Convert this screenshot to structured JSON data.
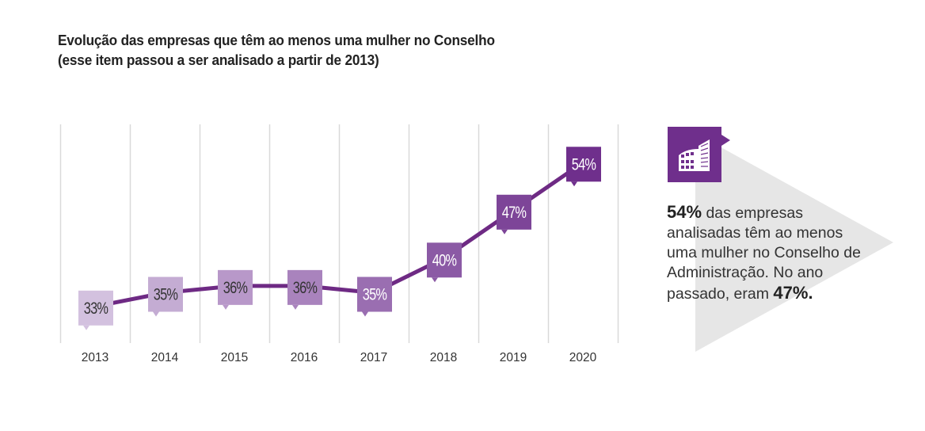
{
  "title": {
    "line1": "Evolução das empresas que têm ao menos uma mulher no Conselho",
    "line2": "(esse item passou a ser analisado a partir de 2013)"
  },
  "chart_data": {
    "type": "line",
    "title": "Evolução das empresas que têm ao menos uma mulher no Conselho (esse item passou a ser analisado a partir de 2013)",
    "xlabel": "",
    "ylabel": "",
    "categories": [
      "2013",
      "2014",
      "2015",
      "2016",
      "2017",
      "2018",
      "2019",
      "2020"
    ],
    "values": [
      33,
      35,
      36,
      36,
      35,
      40,
      47,
      54
    ],
    "labels": [
      "33%",
      "35%",
      "36%",
      "36%",
      "35%",
      "40%",
      "47%",
      "54%"
    ],
    "ylim": [
      28,
      56
    ],
    "grid": "vertical",
    "colors": {
      "line": "#6e2a84",
      "boxes": [
        "#d3c1df",
        "#c4acd3",
        "#b898c9",
        "#a983bd",
        "#9a6eb1",
        "#8b5aa5",
        "#7d4598",
        "#6f2f8c"
      ],
      "label_dark": "#333333",
      "label_light": "#ffffff",
      "grid": "#d9d9d9"
    }
  },
  "callout": {
    "icon": "building-icon",
    "icon_color": "#6f2f8c",
    "arrow_color": "#e6e6e6",
    "strong1": "54%",
    "text1": " das empresas analisadas têm ao menos uma mulher no Conselho de Administração. No ano passado, eram ",
    "strong2": "47%."
  }
}
